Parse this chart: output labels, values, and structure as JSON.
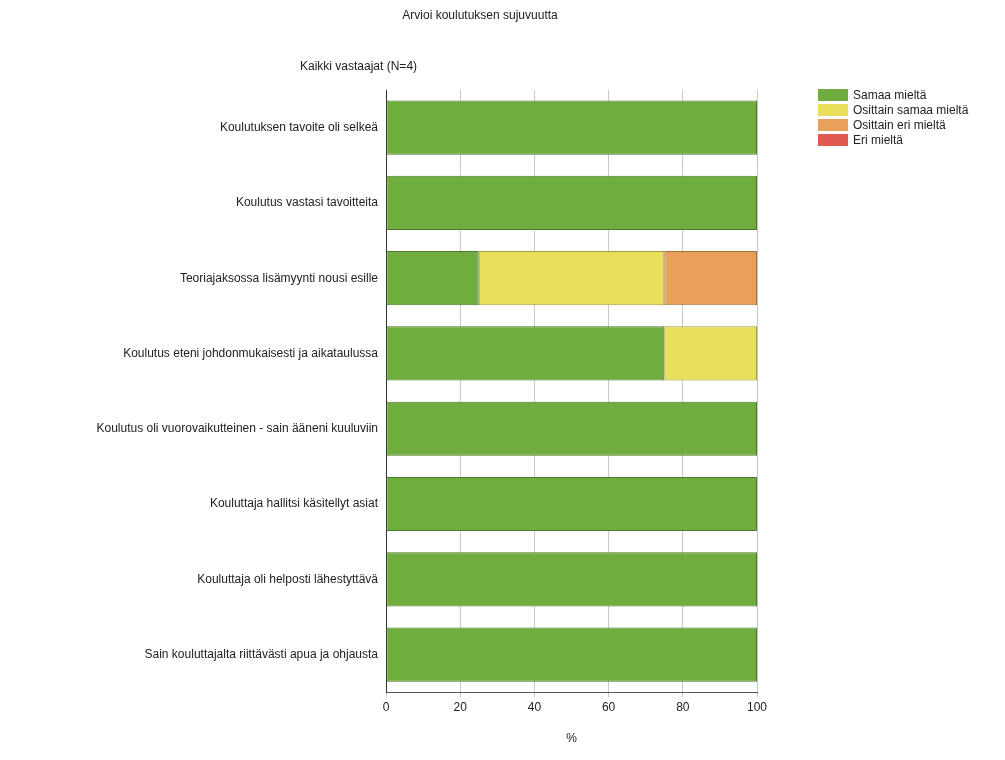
{
  "chart_data": {
    "type": "bar",
    "orientation": "horizontal",
    "stacked": true,
    "title": "Arvioi koulutuksen sujuvuutta",
    "subtitle": "Kaikki vastaajat (N=4)",
    "xlabel": "%",
    "categories": [
      "Koulutuksen tavoite oli selkeä",
      "Koulutus vastasi tavoitteita",
      "Teoriajaksossa lisämyynti nousi esille",
      "Koulutus eteni johdonmukaisesti ja aikataulussa",
      "Koulutus oli vuorovaikutteinen - sain ääneni kuuluviin",
      "Kouluttaja hallitsi käsitellyt asiat",
      "Kouluttaja oli helposti lähestyttävä",
      "Sain kouluttajalta riittävästi apua ja ohjausta"
    ],
    "series": [
      {
        "name": "Samaa mieltä",
        "color": "#6fad3f",
        "values": [
          100,
          100,
          25,
          75,
          100,
          100,
          100,
          100
        ]
      },
      {
        "name": "Osittain samaa mieltä",
        "color": "#e9df5a",
        "values": [
          0,
          0,
          50,
          25,
          0,
          0,
          0,
          0
        ]
      },
      {
        "name": "Osittain eri mieltä",
        "color": "#e8a05a",
        "values": [
          0,
          0,
          25,
          0,
          0,
          0,
          0,
          0
        ]
      },
      {
        "name": "Eri mieltä",
        "color": "#e05a52",
        "values": [
          0,
          0,
          0,
          0,
          0,
          0,
          0,
          0
        ]
      }
    ],
    "xlim": [
      0,
      100
    ],
    "xticks": [
      0,
      20,
      40,
      60,
      80,
      100
    ],
    "grid": "x",
    "legend": "top right"
  }
}
